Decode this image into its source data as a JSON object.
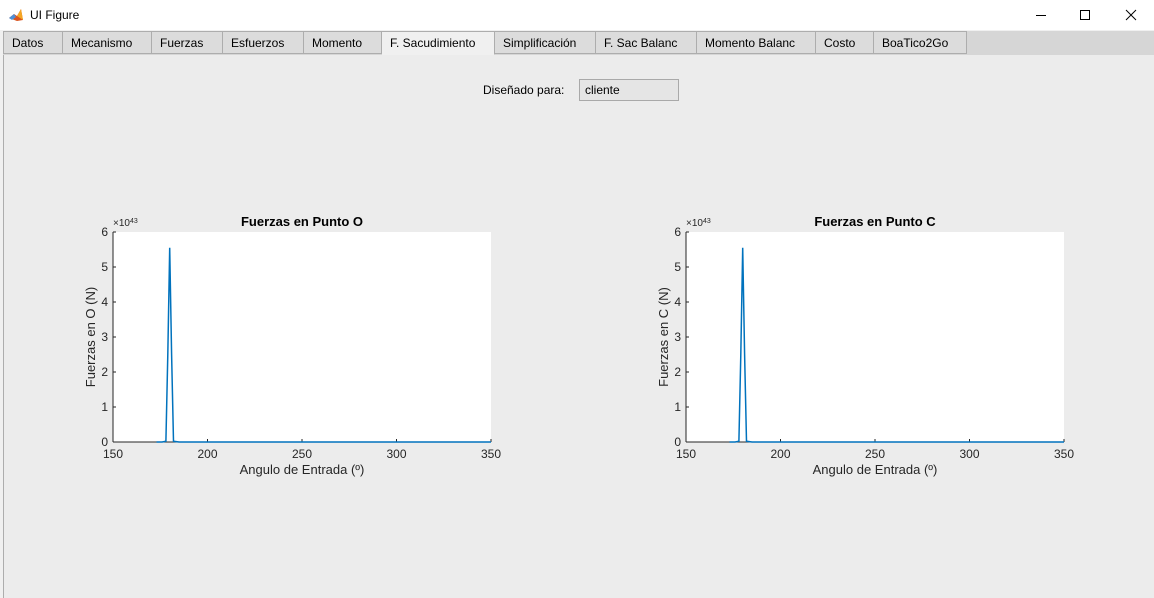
{
  "window": {
    "title": "UI Figure"
  },
  "tabs": [
    {
      "label": "Datos",
      "active": false
    },
    {
      "label": "Mecanismo",
      "active": false
    },
    {
      "label": "Fuerzas",
      "active": false
    },
    {
      "label": "Esfuerzos",
      "active": false
    },
    {
      "label": "Momento",
      "active": false
    },
    {
      "label": "F. Sacudimiento",
      "active": true
    },
    {
      "label": "Simplificación",
      "active": false
    },
    {
      "label": "F. Sac Balanc",
      "active": false
    },
    {
      "label": "Momento Balanc",
      "active": false
    },
    {
      "label": "Costo",
      "active": false
    },
    {
      "label": "BoaTico2Go",
      "active": false
    }
  ],
  "designed_for": {
    "label": "Diseñado para:",
    "value": "cliente"
  },
  "colors": {
    "line": "#0072bd",
    "panel": "#ececec",
    "axes_bg": "#ffffff"
  },
  "chart_data": [
    {
      "type": "line",
      "title": "Fuerzas en Punto O",
      "xlabel": "Angulo de Entrada (º)",
      "ylabel": "Fuerzas en O (N)",
      "exponent_label": "×10",
      "exponent": "43",
      "xlim": [
        150,
        350
      ],
      "ylim": [
        0,
        6
      ],
      "xticks": [
        "150",
        "200",
        "250",
        "300",
        "350"
      ],
      "yticks": [
        "0",
        "1",
        "2",
        "3",
        "4",
        "5",
        "6"
      ],
      "grid": false,
      "x": [
        173,
        176,
        178,
        179,
        180,
        181,
        182,
        185,
        190,
        250,
        300,
        350
      ],
      "y": [
        0,
        0,
        0.02,
        2.5,
        5.55,
        2.5,
        0.02,
        0,
        0,
        0,
        0,
        0
      ]
    },
    {
      "type": "line",
      "title": "Fuerzas en Punto C",
      "xlabel": "Angulo de Entrada (º)",
      "ylabel": "Fuerzas en C (N)",
      "exponent_label": "×10",
      "exponent": "43",
      "xlim": [
        150,
        350
      ],
      "ylim": [
        0,
        6
      ],
      "xticks": [
        "150",
        "200",
        "250",
        "300",
        "350"
      ],
      "yticks": [
        "0",
        "1",
        "2",
        "3",
        "4",
        "5",
        "6"
      ],
      "grid": false,
      "x": [
        173,
        176,
        178,
        179,
        180,
        181,
        182,
        185,
        190,
        250,
        300,
        350
      ],
      "y": [
        0,
        0,
        0.02,
        2.5,
        5.55,
        2.5,
        0.02,
        0,
        0,
        0,
        0,
        0
      ]
    }
  ]
}
